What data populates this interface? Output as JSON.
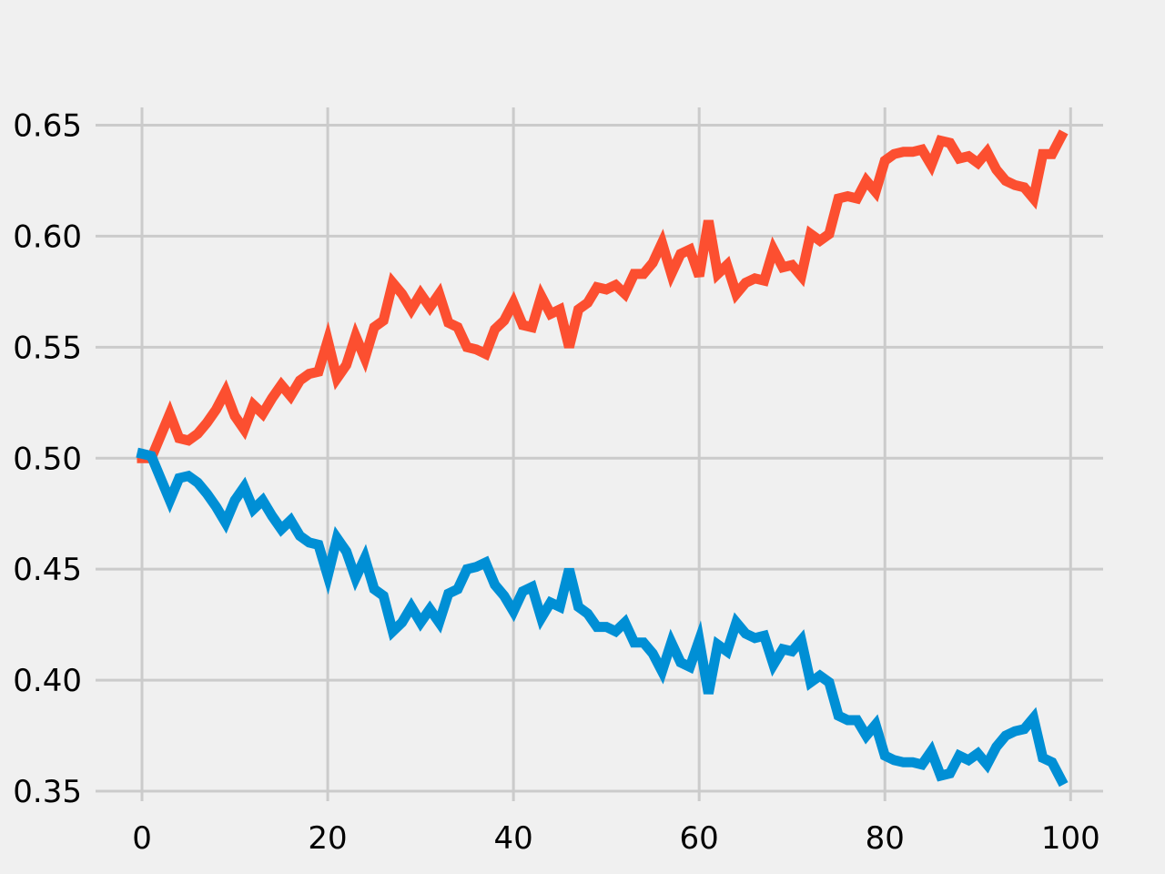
{
  "chart_data": {
    "type": "line",
    "title": "",
    "xlabel": "",
    "ylabel": "",
    "xlim": [
      -5,
      103.5
    ],
    "ylim": [
      0.3455,
      0.658
    ],
    "grid": true,
    "legend": "none",
    "x_ticks": [
      0,
      20,
      40,
      60,
      80,
      100
    ],
    "x_tick_labels": [
      "0",
      "20",
      "40",
      "60",
      "80",
      "100"
    ],
    "y_ticks": [
      0.35,
      0.4,
      0.45,
      0.5,
      0.55,
      0.6,
      0.65
    ],
    "y_tick_labels": [
      "0.35",
      "0.40",
      "0.45",
      "0.50",
      "0.55",
      "0.60",
      "0.65"
    ],
    "x": [
      0,
      1,
      2,
      3,
      4,
      5,
      6,
      7,
      8,
      9,
      10,
      11,
      12,
      13,
      14,
      15,
      16,
      17,
      18,
      19,
      20,
      21,
      22,
      23,
      24,
      25,
      26,
      27,
      28,
      29,
      30,
      31,
      32,
      33,
      34,
      35,
      36,
      37,
      38,
      39,
      40,
      41,
      42,
      43,
      44,
      45,
      46,
      47,
      48,
      49,
      50,
      51,
      52,
      53,
      54,
      55,
      56,
      57,
      58,
      59,
      60,
      61,
      62,
      63,
      64,
      65,
      66,
      67,
      68,
      69,
      70,
      71,
      72,
      73,
      74,
      75,
      76,
      77,
      78,
      79,
      80,
      81,
      82,
      83,
      84,
      85,
      86,
      87,
      88,
      89,
      90,
      91,
      92,
      93,
      94,
      95,
      96,
      97,
      98,
      99
    ],
    "series": [
      {
        "color": "#fc4f30",
        "values": [
          0.5,
          0.5,
          0.51,
          0.52,
          0.509,
          0.508,
          0.511,
          0.516,
          0.522,
          0.53,
          0.519,
          0.513,
          0.524,
          0.52,
          0.527,
          0.533,
          0.528,
          0.535,
          0.538,
          0.539,
          0.553,
          0.536,
          0.542,
          0.555,
          0.545,
          0.559,
          0.562,
          0.579,
          0.574,
          0.567,
          0.574,
          0.568,
          0.574,
          0.561,
          0.559,
          0.55,
          0.549,
          0.547,
          0.558,
          0.562,
          0.57,
          0.56,
          0.559,
          0.573,
          0.565,
          0.567,
          0.55,
          0.567,
          0.57,
          0.577,
          0.576,
          0.578,
          0.574,
          0.583,
          0.583,
          0.588,
          0.597,
          0.583,
          0.592,
          0.594,
          0.582,
          0.607,
          0.583,
          0.587,
          0.574,
          0.579,
          0.581,
          0.58,
          0.594,
          0.586,
          0.587,
          0.582,
          0.601,
          0.598,
          0.601,
          0.617,
          0.618,
          0.617,
          0.625,
          0.62,
          0.634,
          0.637,
          0.638,
          0.638,
          0.639,
          0.632,
          0.643,
          0.642,
          0.635,
          0.636,
          0.633,
          0.638,
          0.63,
          0.625,
          0.623,
          0.622,
          0.617,
          0.637,
          0.637,
          0.645
        ]
      },
      {
        "color": "#008fd5",
        "values": [
          0.502,
          0.501,
          0.491,
          0.481,
          0.491,
          0.492,
          0.489,
          0.484,
          0.478,
          0.471,
          0.481,
          0.487,
          0.477,
          0.481,
          0.474,
          0.468,
          0.472,
          0.465,
          0.462,
          0.461,
          0.447,
          0.464,
          0.458,
          0.446,
          0.455,
          0.441,
          0.438,
          0.422,
          0.426,
          0.433,
          0.426,
          0.432,
          0.426,
          0.439,
          0.441,
          0.45,
          0.451,
          0.453,
          0.443,
          0.438,
          0.431,
          0.44,
          0.442,
          0.428,
          0.435,
          0.433,
          0.45,
          0.433,
          0.43,
          0.424,
          0.424,
          0.422,
          0.426,
          0.417,
          0.417,
          0.412,
          0.404,
          0.417,
          0.408,
          0.406,
          0.418,
          0.394,
          0.416,
          0.413,
          0.426,
          0.421,
          0.419,
          0.42,
          0.407,
          0.414,
          0.413,
          0.418,
          0.399,
          0.402,
          0.399,
          0.384,
          0.382,
          0.382,
          0.375,
          0.38,
          0.366,
          0.364,
          0.363,
          0.363,
          0.362,
          0.368,
          0.357,
          0.358,
          0.366,
          0.364,
          0.367,
          0.362,
          0.37,
          0.375,
          0.377,
          0.378,
          0.383,
          0.365,
          0.363,
          0.355
        ]
      }
    ]
  }
}
